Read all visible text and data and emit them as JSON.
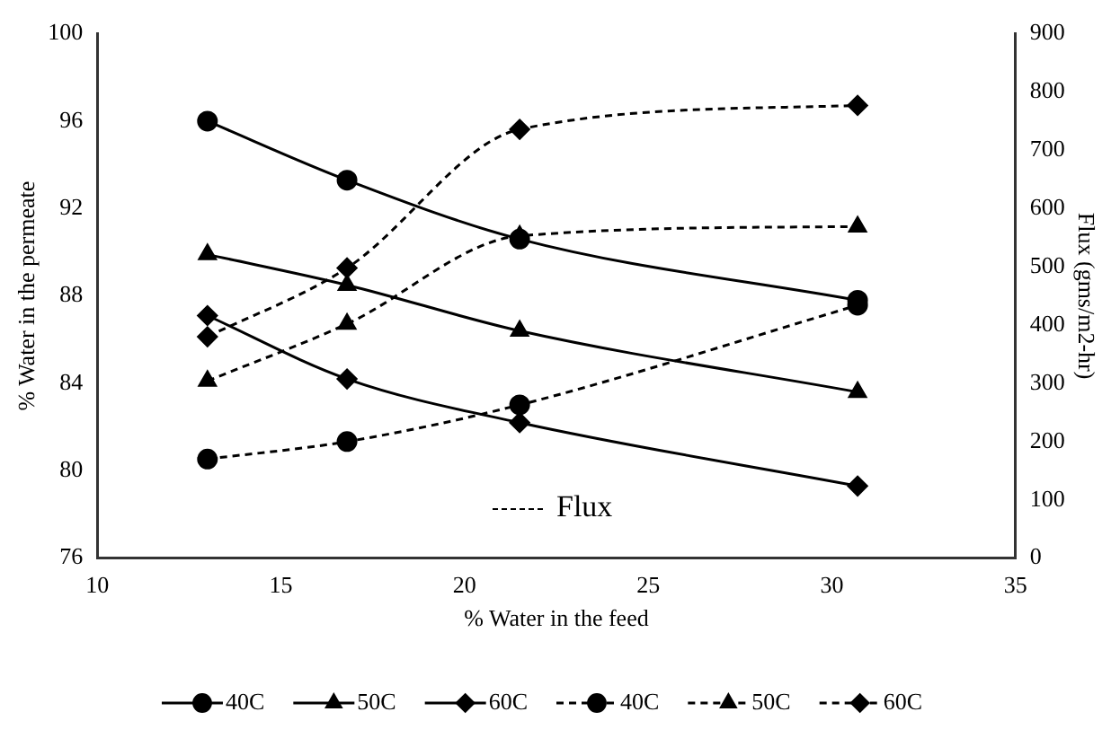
{
  "chart_data": {
    "type": "line",
    "xlabel": "% Water in the feed",
    "ylabel": "% Water in the permeate",
    "y2label": "Flux (gms/m2-hr)",
    "annotations": [
      "Flux"
    ],
    "series": [
      {
        "name": "40C",
        "color": "#000000",
        "marker": "circle",
        "line_style": "solid",
        "x": [
          13,
          16.8,
          21.5,
          30.7
        ],
        "values": [
          96,
          93.3,
          90.6,
          87.8
        ]
      },
      {
        "name": "50C",
        "color": "#000000",
        "marker": "triangle",
        "line_style": "solid",
        "x": [
          13,
          16.8,
          21.5,
          30.7
        ],
        "values": [
          89.9,
          88.5,
          86.4,
          83.6
        ]
      },
      {
        "name": "60C",
        "color": "#000000",
        "marker": "diamond",
        "line_style": "solid",
        "x": [
          13,
          16.8,
          21.5,
          30.7
        ],
        "values": [
          87.1,
          84.2,
          82.2,
          79.3
        ]
      },
      {
        "name": "40C",
        "color": "#000000",
        "marker": "circle",
        "line_style": "dashed",
        "axis": "y2",
        "x": [
          13,
          16.8,
          21.5,
          30.7
        ],
        "values": [
          170,
          200,
          263,
          434
        ]
      },
      {
        "name": "50C",
        "color": "#000000",
        "marker": "triangle",
        "line_style": "dashed",
        "axis": "y2",
        "x": [
          13,
          16.8,
          21.5,
          30.7
        ],
        "values": [
          304,
          402,
          553,
          569
        ]
      },
      {
        "name": "60C",
        "color": "#000000",
        "marker": "diamond",
        "line_style": "dashed",
        "axis": "y2",
        "x": [
          13,
          16.8,
          21.5,
          30.7
        ],
        "values": [
          380,
          498,
          736,
          777
        ]
      }
    ],
    "xlim": [
      10,
      35
    ],
    "xticks": [
      10,
      15,
      20,
      25,
      30,
      35
    ],
    "ylim": [
      76,
      100
    ],
    "yticks": [
      76,
      80,
      84,
      88,
      92,
      96,
      100
    ],
    "y2lim": [
      0,
      900
    ],
    "y2ticks": [
      0,
      100,
      200,
      300,
      400,
      500,
      600,
      700,
      800,
      900
    ],
    "grid": false,
    "legend": "bottom"
  }
}
